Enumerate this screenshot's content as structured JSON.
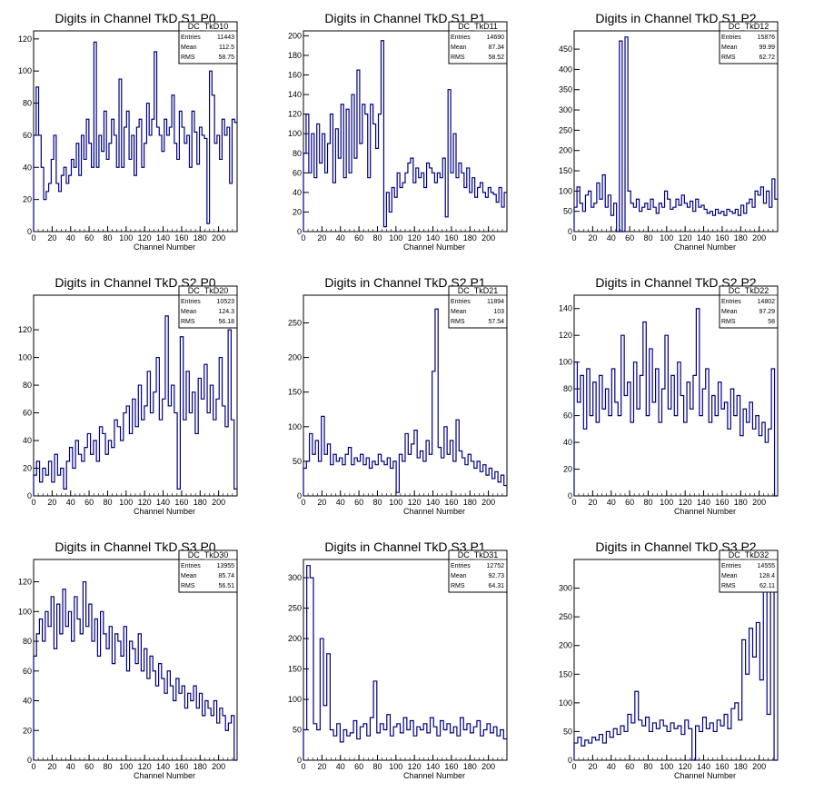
{
  "x_axis_label": "Channel Number",
  "stat_labels": {
    "entries": "Entries",
    "mean": "Mean",
    "rms": "RMS"
  },
  "line_color": "#000080",
  "chart_data": [
    {
      "type": "line",
      "title": "Digits in Channel TkD S1 P0",
      "stats": {
        "name": "DC_TkD10",
        "entries": "11443",
        "mean": "112.5",
        "rms": "58.75"
      },
      "xlim": [
        0,
        220
      ],
      "ylim": [
        0,
        125
      ],
      "xticks": [
        0,
        20,
        40,
        60,
        80,
        100,
        120,
        140,
        160,
        180,
        200
      ],
      "yticks": [
        0,
        20,
        40,
        60,
        80,
        100,
        120
      ],
      "values": [
        60,
        90,
        60,
        40,
        20,
        25,
        30,
        45,
        60,
        30,
        25,
        35,
        40,
        30,
        35,
        45,
        40,
        55,
        35,
        60,
        45,
        70,
        55,
        40,
        118,
        40,
        60,
        50,
        75,
        45,
        55,
        70,
        60,
        40,
        95,
        40,
        65,
        75,
        45,
        60,
        35,
        65,
        70,
        40,
        55,
        80,
        60,
        70,
        112,
        65,
        60,
        50,
        70,
        60,
        65,
        85,
        55,
        45,
        75,
        65,
        55,
        60,
        40,
        75,
        62,
        42,
        65,
        60,
        58,
        5,
        100,
        85,
        55,
        60,
        45,
        70,
        60,
        65,
        30,
        70,
        68
      ]
    },
    {
      "type": "line",
      "title": "Digits in Channel TkD S1 P1",
      "stats": {
        "name": "DC_TkD11",
        "entries": "14690",
        "mean": "87.34",
        "rms": "58.52"
      },
      "xlim": [
        0,
        220
      ],
      "ylim": [
        0,
        205
      ],
      "xticks": [
        0,
        20,
        40,
        60,
        80,
        100,
        120,
        140,
        160,
        180,
        200
      ],
      "yticks": [
        0,
        20,
        40,
        60,
        80,
        100,
        120,
        140,
        160,
        180,
        200
      ],
      "values": [
        80,
        120,
        60,
        100,
        55,
        110,
        70,
        100,
        60,
        90,
        120,
        50,
        105,
        75,
        130,
        55,
        125,
        60,
        140,
        75,
        165,
        90,
        130,
        120,
        55,
        130,
        110,
        85,
        120,
        195,
        5,
        40,
        20,
        45,
        35,
        60,
        45,
        50,
        60,
        70,
        75,
        50,
        65,
        55,
        60,
        45,
        70,
        65,
        60,
        50,
        60,
        55,
        75,
        15,
        145,
        60,
        100,
        55,
        70,
        60,
        45,
        65,
        40,
        55,
        35,
        45,
        50,
        40,
        35,
        45,
        40,
        38,
        30,
        45,
        25,
        40
      ]
    },
    {
      "type": "line",
      "title": "Digits in Channel TkD S1 P2",
      "stats": {
        "name": "DC_TkD12",
        "entries": "15876",
        "mean": "99.99",
        "rms": "62.72"
      },
      "xlim": [
        0,
        220
      ],
      "ylim": [
        0,
        495
      ],
      "xticks": [
        0,
        20,
        40,
        60,
        80,
        100,
        120,
        140,
        160,
        180,
        200
      ],
      "yticks": [
        0,
        50,
        100,
        150,
        200,
        250,
        300,
        350,
        400,
        450
      ],
      "values": [
        60,
        110,
        70,
        50,
        90,
        100,
        60,
        70,
        120,
        80,
        140,
        60,
        90,
        40,
        70,
        0,
        470,
        0,
        480,
        100,
        70,
        60,
        80,
        50,
        60,
        70,
        55,
        80,
        60,
        45,
        70,
        60,
        100,
        80,
        55,
        60,
        80,
        65,
        90,
        70,
        60,
        75,
        50,
        80,
        60,
        65,
        55,
        45,
        50,
        40,
        55,
        45,
        50,
        40,
        55,
        50,
        45,
        55,
        40,
        65,
        45,
        70,
        80,
        60,
        100,
        90,
        110,
        70,
        100,
        60,
        130,
        80
      ]
    },
    {
      "type": "line",
      "title": "Digits in Channel TkD S2 P0",
      "stats": {
        "name": "DC_TkD20",
        "entries": "10523",
        "mean": "124.3",
        "rms": "56.18"
      },
      "xlim": [
        0,
        220
      ],
      "ylim": [
        0,
        145
      ],
      "xticks": [
        0,
        20,
        40,
        60,
        80,
        100,
        120,
        140,
        160,
        180,
        200
      ],
      "yticks": [
        0,
        20,
        40,
        60,
        80,
        100,
        120
      ],
      "values": [
        15,
        25,
        10,
        20,
        15,
        25,
        10,
        30,
        15,
        20,
        5,
        25,
        35,
        20,
        40,
        30,
        25,
        35,
        45,
        30,
        40,
        25,
        50,
        45,
        30,
        40,
        35,
        55,
        50,
        40,
        60,
        65,
        45,
        70,
        50,
        80,
        55,
        65,
        90,
        60,
        75,
        100,
        55,
        70,
        130,
        65,
        80,
        60,
        5,
        115,
        55,
        90,
        60,
        75,
        45,
        85,
        70,
        95,
        60,
        80,
        55,
        70,
        100,
        65,
        50,
        120,
        55,
        5
      ]
    },
    {
      "type": "line",
      "title": "Digits in Channel TkD S2 P1",
      "stats": {
        "name": "DC_TkD21",
        "entries": "11894",
        "mean": "103",
        "rms": "57.54"
      },
      "xlim": [
        0,
        220
      ],
      "ylim": [
        0,
        290
      ],
      "xticks": [
        0,
        20,
        40,
        60,
        80,
        100,
        120,
        140,
        160,
        180,
        200
      ],
      "yticks": [
        0,
        50,
        100,
        150,
        200,
        250
      ],
      "values": [
        40,
        50,
        90,
        60,
        80,
        50,
        115,
        60,
        75,
        45,
        60,
        50,
        55,
        45,
        60,
        70,
        45,
        55,
        50,
        60,
        45,
        55,
        40,
        50,
        45,
        60,
        50,
        45,
        55,
        40,
        50,
        5,
        60,
        50,
        90,
        60,
        75,
        95,
        55,
        65,
        50,
        80,
        60,
        180,
        270,
        70,
        55,
        100,
        60,
        80,
        50,
        110,
        65,
        55,
        45,
        60,
        50,
        40,
        50,
        35,
        45,
        30,
        40,
        25,
        35,
        20,
        30,
        15
      ]
    },
    {
      "type": "line",
      "title": "Digits in Channel TkD S2 P2",
      "stats": {
        "name": "DC_TkD22",
        "entries": "14802",
        "mean": "97.29",
        "rms": "58"
      },
      "xlim": [
        0,
        220
      ],
      "ylim": [
        0,
        150
      ],
      "xticks": [
        0,
        20,
        40,
        60,
        80,
        100,
        120,
        140,
        160,
        180,
        200
      ],
      "yticks": [
        0,
        20,
        40,
        60,
        80,
        100,
        120,
        140
      ],
      "values": [
        100,
        70,
        90,
        50,
        95,
        60,
        85,
        55,
        90,
        65,
        80,
        60,
        95,
        70,
        60,
        120,
        75,
        85,
        55,
        100,
        65,
        90,
        130,
        60,
        110,
        70,
        95,
        55,
        80,
        120,
        65,
        90,
        60,
        100,
        75,
        55,
        85,
        65,
        90,
        140,
        60,
        80,
        95,
        55,
        75,
        60,
        85,
        65,
        70,
        50,
        80,
        60,
        75,
        45,
        65,
        55,
        70,
        50,
        60,
        45,
        55,
        40,
        50,
        95,
        0
      ]
    },
    {
      "type": "line",
      "title": "Digits in Channel TkD S3 P0",
      "stats": {
        "name": "DC_TkD30",
        "entries": "13955",
        "mean": "85.74",
        "rms": "56.51"
      },
      "xlim": [
        0,
        220
      ],
      "ylim": [
        0,
        135
      ],
      "xticks": [
        0,
        20,
        40,
        60,
        80,
        100,
        120,
        140,
        160,
        180,
        200
      ],
      "yticks": [
        0,
        20,
        40,
        60,
        80,
        100,
        120
      ],
      "values": [
        70,
        85,
        95,
        80,
        100,
        90,
        110,
        75,
        105,
        85,
        115,
        90,
        100,
        80,
        110,
        95,
        85,
        120,
        90,
        105,
        80,
        95,
        70,
        100,
        85,
        75,
        90,
        65,
        85,
        80,
        70,
        90,
        60,
        80,
        75,
        65,
        85,
        60,
        75,
        55,
        70,
        60,
        50,
        65,
        55,
        45,
        60,
        50,
        40,
        55,
        45,
        50,
        35,
        45,
        40,
        50,
        35,
        45,
        30,
        40,
        35,
        30,
        40,
        25,
        35,
        30,
        20,
        25,
        30,
        0
      ]
    },
    {
      "type": "line",
      "title": "Digits in Channel TkD S3 P1",
      "stats": {
        "name": "DC_TkD31",
        "entries": "12752",
        "mean": "92.73",
        "rms": "64.31"
      },
      "xlim": [
        0,
        220
      ],
      "ylim": [
        0,
        330
      ],
      "xticks": [
        0,
        20,
        40,
        60,
        80,
        100,
        120,
        140,
        160,
        180,
        200
      ],
      "yticks": [
        0,
        50,
        100,
        150,
        200,
        250,
        300
      ],
      "values": [
        50,
        320,
        300,
        60,
        50,
        200,
        90,
        175,
        50,
        40,
        60,
        30,
        50,
        40,
        45,
        65,
        35,
        55,
        60,
        40,
        70,
        130,
        45,
        60,
        50,
        75,
        40,
        55,
        60,
        45,
        70,
        50,
        65,
        40,
        55,
        50,
        60,
        45,
        70,
        55,
        40,
        65,
        50,
        60,
        45,
        55,
        40,
        70,
        50,
        60,
        45,
        55,
        65,
        40,
        50,
        60,
        45,
        55,
        40,
        50,
        35
      ]
    },
    {
      "type": "line",
      "title": "Digits in Channel TkD S3 P2",
      "stats": {
        "name": "DC_TkD32",
        "entries": "14555",
        "mean": "128.4",
        "rms": "62.11"
      },
      "xlim": [
        0,
        220
      ],
      "ylim": [
        0,
        350
      ],
      "xticks": [
        0,
        20,
        40,
        60,
        80,
        100,
        120,
        140,
        160,
        180,
        200
      ],
      "yticks": [
        0,
        50,
        100,
        150,
        200,
        250,
        300
      ],
      "values": [
        30,
        40,
        25,
        35,
        30,
        40,
        35,
        45,
        30,
        50,
        40,
        55,
        45,
        60,
        50,
        80,
        65,
        120,
        70,
        60,
        75,
        50,
        65,
        55,
        70,
        60,
        50,
        65,
        55,
        60,
        45,
        70,
        55,
        0,
        60,
        50,
        75,
        55,
        65,
        50,
        70,
        60,
        80,
        55,
        90,
        100,
        70,
        210,
        150,
        230,
        180,
        240,
        140,
        300,
        80,
        350,
        0
      ]
    }
  ]
}
